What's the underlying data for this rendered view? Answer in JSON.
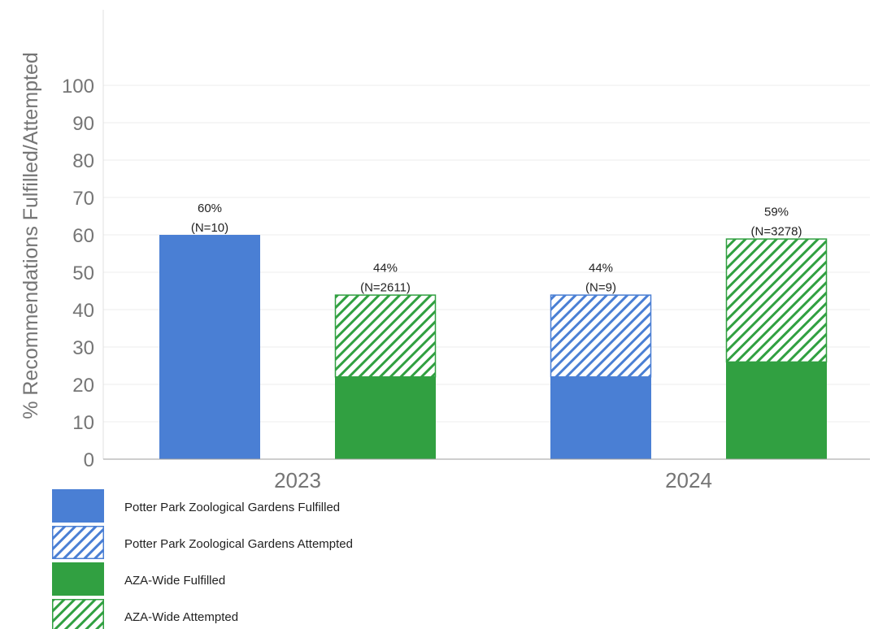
{
  "chart_data": {
    "type": "bar",
    "ylabel": "% Recommendations Fulfilled/Attempted",
    "xlabel": "",
    "ylim": [
      0,
      100
    ],
    "yticks": [
      0,
      10,
      20,
      30,
      40,
      50,
      60,
      70,
      80,
      90,
      100
    ],
    "grid": true,
    "legend_position": "bottom-left",
    "categories": [
      "2023",
      "2024"
    ],
    "groups": [
      {
        "name": "Potter Park Zoological Gardens",
        "color": "#4a7fd4",
        "fulfilled": [
          60,
          22
        ],
        "attempted_total": [
          60,
          44
        ],
        "labels": [
          "60%",
          "44%"
        ],
        "n_labels": [
          "(N=10)",
          "(N=9)"
        ]
      },
      {
        "name": "AZA-Wide",
        "color": "#31a041",
        "fulfilled": [
          22,
          26
        ],
        "attempted_total": [
          44,
          59
        ],
        "labels": [
          "44%",
          "59%"
        ],
        "n_labels": [
          "(N=2611)",
          "(N=3278)"
        ]
      }
    ],
    "legend": [
      {
        "label": "Potter Park Zoological Gardens Fulfilled",
        "color": "#4a7fd4",
        "style": "solid"
      },
      {
        "label": "Potter Park Zoological Gardens Attempted",
        "color": "#4a7fd4",
        "style": "hatched"
      },
      {
        "label": "AZA-Wide Fulfilled",
        "color": "#31a041",
        "style": "solid"
      },
      {
        "label": "AZA-Wide Attempted",
        "color": "#31a041",
        "style": "hatched"
      }
    ]
  }
}
